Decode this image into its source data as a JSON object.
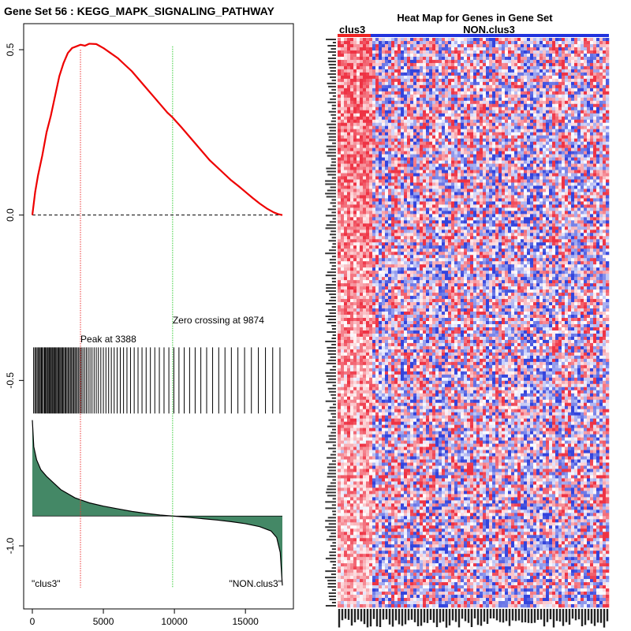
{
  "chart_data": [
    {
      "type": "line",
      "title": "Gene Set  56 : KEGG_MAPK_SIGNALING_PATHWAY",
      "xlim": [
        0,
        17700
      ],
      "ylim": [
        -1.15,
        0.58
      ],
      "xticks": [
        0,
        5000,
        10000,
        15000
      ],
      "xtick_labels": [
        "0",
        "5000",
        "10000",
        "15000"
      ],
      "yticks": [
        0.5,
        0.0,
        -0.5,
        -1.0
      ],
      "ytick_labels": [
        "0.5",
        "0.0",
        "-0.5",
        "-1.0"
      ],
      "running_enrichment_score": {
        "color": "#ee0000",
        "x": [
          0,
          200,
          400,
          700,
          1000,
          1300,
          1600,
          1900,
          2200,
          2500,
          2800,
          3100,
          3388,
          3700,
          4000,
          4500,
          5000,
          5500,
          6000,
          6500,
          7000,
          7500,
          8000,
          8500,
          9000,
          9500,
          9874,
          10500,
          11000,
          11500,
          12000,
          12500,
          13000,
          13500,
          14000,
          14500,
          15000,
          15500,
          16000,
          16500,
          17000,
          17300,
          17600
        ],
        "y": [
          0.0,
          0.07,
          0.12,
          0.18,
          0.25,
          0.3,
          0.36,
          0.42,
          0.46,
          0.49,
          0.505,
          0.51,
          0.515,
          0.512,
          0.518,
          0.517,
          0.505,
          0.49,
          0.475,
          0.455,
          0.435,
          0.41,
          0.385,
          0.36,
          0.335,
          0.31,
          0.295,
          0.265,
          0.24,
          0.215,
          0.19,
          0.165,
          0.145,
          0.125,
          0.105,
          0.088,
          0.07,
          0.052,
          0.035,
          0.02,
          0.008,
          0.003,
          0.0
        ]
      },
      "baseline_y": 0.0,
      "peak": {
        "x": 3388,
        "label": "Peak at 3388",
        "color": "#ee3333"
      },
      "zero_crossing": {
        "x": 9874,
        "label": "Zero crossing at 9874",
        "color": "#33cc33"
      },
      "hit_marks": {
        "y_range": [
          -0.4,
          -0.6
        ],
        "positions": [
          90,
          180,
          260,
          340,
          420,
          500,
          560,
          640,
          700,
          780,
          860,
          920,
          990,
          1060,
          1120,
          1190,
          1260,
          1320,
          1390,
          1450,
          1520,
          1590,
          1650,
          1720,
          1790,
          1860,
          1930,
          2000,
          2070,
          2140,
          2210,
          2290,
          2360,
          2440,
          2520,
          2600,
          2680,
          2760,
          2840,
          2920,
          3000,
          3080,
          3170,
          3260,
          3350,
          3450,
          3560,
          3680,
          3800,
          3930,
          4060,
          4200,
          4350,
          4500,
          4650,
          4820,
          5000,
          5180,
          5370,
          5560,
          5760,
          5970,
          6190,
          6420,
          6660,
          6910,
          7170,
          7440,
          7720,
          8010,
          8310,
          8620,
          8940,
          9270,
          9610,
          9960,
          10320,
          10690,
          11070,
          11460,
          11860,
          12270,
          12690,
          13120,
          13560,
          14010,
          14470,
          14940,
          15420,
          15910,
          16410,
          16920,
          17430
        ]
      },
      "ranked_metric": {
        "fill": "#448866",
        "baseline_y": -0.91,
        "x": [
          0,
          100,
          300,
          600,
          1000,
          1500,
          2000,
          3000,
          4000,
          5000,
          6000,
          7000,
          8000,
          9000,
          9874,
          11000,
          12000,
          13000,
          14000,
          15000,
          16000,
          16800,
          17200,
          17450,
          17600
        ],
        "y": [
          -0.62,
          -0.7,
          -0.74,
          -0.77,
          -0.79,
          -0.81,
          -0.83,
          -0.855,
          -0.87,
          -0.88,
          -0.888,
          -0.896,
          -0.902,
          -0.907,
          -0.91,
          -0.914,
          -0.918,
          -0.922,
          -0.927,
          -0.933,
          -0.942,
          -0.955,
          -0.975,
          -1.02,
          -1.12
        ]
      },
      "corner_labels": {
        "left": "\"clus3\"",
        "right": "\"NON.clus3\""
      }
    },
    {
      "type": "heatmap",
      "title": "Heat Map for Genes in Gene Set",
      "group_labels": [
        "clus3",
        "NON.clus3"
      ],
      "group_colors": [
        "#ee2222",
        "#2233dd"
      ],
      "colors": {
        "high": "#ee3344",
        "low": "#3344dd",
        "neutral": "#ffffff"
      }
    }
  ]
}
